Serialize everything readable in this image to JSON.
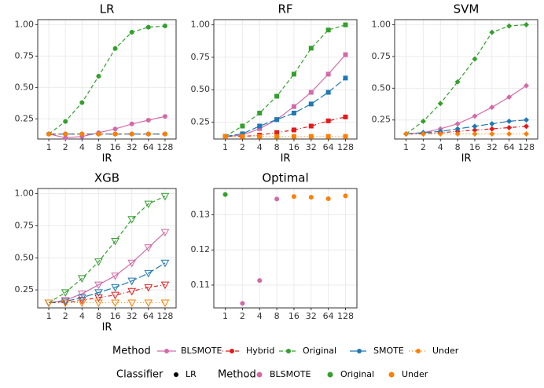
{
  "chart_data": [
    {
      "type": "line",
      "title": "LR",
      "xlabel": "IR",
      "marker": "circle",
      "xscale": "log2",
      "x": [
        1,
        2,
        4,
        8,
        16,
        32,
        64,
        128
      ],
      "xlim": [
        0.63,
        203
      ],
      "xticks": [
        1,
        2,
        4,
        8,
        16,
        32,
        64,
        128
      ],
      "ylim": [
        0.09,
        1.04
      ],
      "yticks": [
        0.25,
        {
          "value": 0.5,
          "label": "0.50"
        },
        0.75,
        {
          "value": 1,
          "label": "1.00"
        }
      ],
      "grid": true,
      "series": [
        {
          "name": "BLSMOTE",
          "color": "#d36aa8",
          "linestyle": "solid",
          "values": [
            0.13,
            0.1,
            0.11,
            0.14,
            0.17,
            0.21,
            0.24,
            0.27
          ]
        },
        {
          "name": "Hybrid",
          "color": "#e31a1c",
          "linestyle": "dotdash",
          "values": [
            0.13,
            0.13,
            0.13,
            0.13,
            0.13,
            0.13,
            0.13,
            0.13
          ]
        },
        {
          "name": "Original",
          "color": "#33a02c",
          "linestyle": "dashed",
          "values": [
            0.13,
            0.23,
            0.38,
            0.59,
            0.81,
            0.94,
            0.98,
            0.99
          ]
        },
        {
          "name": "SMOTE",
          "color": "#1f78b4",
          "linestyle": "longdash",
          "values": [
            0.13,
            0.13,
            0.13,
            0.13,
            0.13,
            0.13,
            0.13,
            0.13
          ]
        },
        {
          "name": "Under",
          "color": "#ff7f00",
          "linestyle": "dotted",
          "values": [
            0.13,
            0.13,
            0.13,
            0.13,
            0.13,
            0.13,
            0.13,
            0.13
          ]
        }
      ]
    },
    {
      "type": "line",
      "title": "RF",
      "xlabel": "IR",
      "marker": "square",
      "xscale": "log2",
      "x": [
        1,
        2,
        4,
        8,
        16,
        32,
        64,
        128
      ],
      "xlim": [
        0.63,
        203
      ],
      "xticks": [
        1,
        2,
        4,
        8,
        16,
        32,
        64,
        128
      ],
      "ylim": [
        0.12,
        1.04
      ],
      "yticks": [
        0.25,
        {
          "value": 0.5,
          "label": "0.50"
        },
        0.75,
        {
          "value": 1,
          "label": "1.00"
        }
      ],
      "grid": true,
      "series": [
        {
          "name": "BLSMOTE",
          "color": "#d36aa8",
          "linestyle": "solid",
          "values": [
            0.14,
            0.15,
            0.2,
            0.27,
            0.37,
            0.48,
            0.62,
            0.77
          ]
        },
        {
          "name": "Hybrid",
          "color": "#e31a1c",
          "linestyle": "dotdash",
          "values": [
            0.14,
            0.14,
            0.15,
            0.17,
            0.19,
            0.22,
            0.26,
            0.29
          ]
        },
        {
          "name": "Original",
          "color": "#33a02c",
          "linestyle": "dashed",
          "values": [
            0.14,
            0.22,
            0.32,
            0.45,
            0.62,
            0.82,
            0.96,
            1.0
          ]
        },
        {
          "name": "SMOTE",
          "color": "#1f78b4",
          "linestyle": "longdash",
          "values": [
            0.14,
            0.16,
            0.22,
            0.27,
            0.32,
            0.39,
            0.48,
            0.59
          ]
        },
        {
          "name": "Under",
          "color": "#ff7f00",
          "linestyle": "dotted",
          "values": [
            0.14,
            0.14,
            0.14,
            0.14,
            0.14,
            0.14,
            0.14,
            0.14
          ]
        }
      ]
    },
    {
      "type": "line",
      "title": "SVM",
      "xlabel": "IR",
      "marker": "diamond",
      "xscale": "log2",
      "x": [
        1,
        2,
        4,
        8,
        16,
        32,
        64,
        128
      ],
      "xlim": [
        0.63,
        203
      ],
      "xticks": [
        1,
        2,
        4,
        8,
        16,
        32,
        64,
        128
      ],
      "ylim": [
        0.1,
        1.04
      ],
      "yticks": [
        0.25,
        {
          "value": 0.5,
          "label": "0.50"
        },
        0.75,
        {
          "value": 1,
          "label": "1.00"
        }
      ],
      "grid": true,
      "series": [
        {
          "name": "BLSMOTE",
          "color": "#d36aa8",
          "linestyle": "solid",
          "values": [
            0.14,
            0.15,
            0.18,
            0.22,
            0.28,
            0.35,
            0.43,
            0.52
          ]
        },
        {
          "name": "Hybrid",
          "color": "#e31a1c",
          "linestyle": "dotdash",
          "values": [
            0.14,
            0.14,
            0.15,
            0.16,
            0.17,
            0.18,
            0.19,
            0.2
          ]
        },
        {
          "name": "Original",
          "color": "#33a02c",
          "linestyle": "dashed",
          "values": [
            0.14,
            0.24,
            0.38,
            0.55,
            0.73,
            0.94,
            0.99,
            1.0
          ]
        },
        {
          "name": "SMOTE",
          "color": "#1f78b4",
          "linestyle": "longdash",
          "values": [
            0.14,
            0.15,
            0.16,
            0.18,
            0.2,
            0.22,
            0.24,
            0.25
          ]
        },
        {
          "name": "Under",
          "color": "#ff7f00",
          "linestyle": "dotted",
          "values": [
            0.14,
            0.14,
            0.14,
            0.14,
            0.14,
            0.14,
            0.14,
            0.14
          ]
        }
      ]
    },
    {
      "type": "line",
      "title": "XGB",
      "xlabel": "IR",
      "marker": "triangle-open",
      "xscale": "log2",
      "x": [
        1,
        2,
        4,
        8,
        16,
        32,
        64,
        128
      ],
      "xlim": [
        0.63,
        203
      ],
      "xticks": [
        1,
        2,
        4,
        8,
        16,
        32,
        64,
        128
      ],
      "ylim": [
        0.11,
        1.04
      ],
      "yticks": [
        0.25,
        {
          "value": 0.5,
          "label": "0.50"
        },
        0.75,
        {
          "value": 1,
          "label": "1.00"
        }
      ],
      "grid": true,
      "series": [
        {
          "name": "BLSMOTE",
          "color": "#d36aa8",
          "linestyle": "solid",
          "values": [
            0.15,
            0.17,
            0.22,
            0.29,
            0.36,
            0.46,
            0.58,
            0.7
          ]
        },
        {
          "name": "Hybrid",
          "color": "#e31a1c",
          "linestyle": "dotdash",
          "values": [
            0.15,
            0.15,
            0.17,
            0.19,
            0.21,
            0.24,
            0.27,
            0.29
          ]
        },
        {
          "name": "Original",
          "color": "#33a02c",
          "linestyle": "dashed",
          "values": [
            0.15,
            0.23,
            0.34,
            0.47,
            0.63,
            0.8,
            0.92,
            0.98
          ]
        },
        {
          "name": "SMOTE",
          "color": "#1f78b4",
          "linestyle": "longdash",
          "values": [
            0.15,
            0.16,
            0.19,
            0.23,
            0.27,
            0.32,
            0.38,
            0.46
          ]
        },
        {
          "name": "Under",
          "color": "#ff7f00",
          "linestyle": "dotted",
          "values": [
            0.15,
            0.15,
            0.15,
            0.15,
            0.15,
            0.15,
            0.15,
            0.15
          ]
        }
      ]
    },
    {
      "type": "scatter",
      "title": "Optimal",
      "marker": "circle",
      "xscale": "log2",
      "xlim": [
        0.63,
        203
      ],
      "xticks": [
        1,
        2,
        4,
        8,
        16,
        32,
        64,
        128
      ],
      "ylim": [
        0.1035,
        0.1375
      ],
      "yticks": [
        0.11,
        0.12,
        0.13
      ],
      "grid": true,
      "series": [
        {
          "name": "BLSMOTE",
          "color": "#d36aa8",
          "x": [
            2,
            4,
            8
          ],
          "values": [
            0.1048,
            0.1113,
            0.1345
          ]
        },
        {
          "name": "Original",
          "color": "#33a02c",
          "x": [
            1
          ],
          "values": [
            0.1358
          ]
        },
        {
          "name": "Under",
          "color": "#ff7f00",
          "x": [
            16,
            32,
            64,
            128
          ],
          "values": [
            0.1352,
            0.135,
            0.1346,
            0.1354
          ]
        }
      ]
    }
  ],
  "legend": {
    "method_title": "Method",
    "classifier_title": "Classifier",
    "classifier_entries": [
      "LR"
    ],
    "optimal_method_title": "Method"
  }
}
